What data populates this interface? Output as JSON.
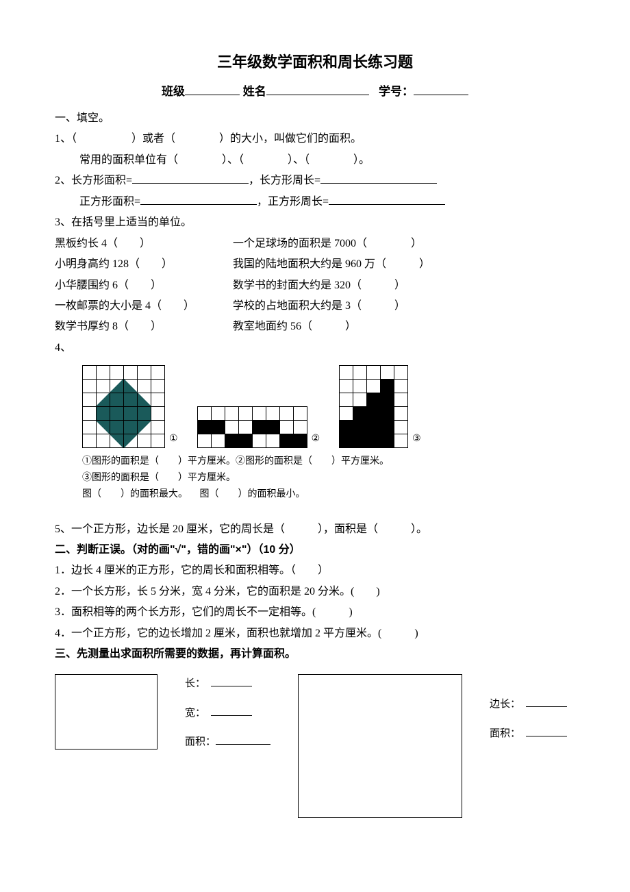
{
  "title": "三年级数学面积和周长练习题",
  "header": {
    "class_label": "班级",
    "name_label": "姓名",
    "id_label": "学号："
  },
  "s1": {
    "heading": "一、填空。",
    "q1a": "1、（　　　　　）或者（　　　　）的大小，叫做它们的面积。",
    "q1b": "常用的面积单位有（　　　　）、（　　　　）、（　　　　）。",
    "q2a_pre": "2、长方形面积=",
    "q2a_mid": "，长方形周长=",
    "q2b_pre": "正方形面积=",
    "q2b_mid": "，正方形周长=",
    "q3": "3、在括号里上适当的单位。",
    "units": [
      [
        "黑板约长 4（　　）",
        "一个足球场的面积是 7000（　　　　）"
      ],
      [
        "小明身高约 128（　　）",
        "我国的陆地面积大约是 960 万（　　　）"
      ],
      [
        "小华腰围约 6（　　）",
        "数学书的封面大约是 320（　　　）"
      ],
      [
        "一枚邮票的大小是 4（　　）",
        "学校的占地面积大约是 3（　　　）"
      ],
      [
        "数学书厚约 8（　　）",
        "教室地面约 56（　　　）"
      ]
    ],
    "q4": "4、",
    "fig": {
      "label1": "①",
      "label2": "②",
      "label3": "③",
      "line1": "①图形的面积是（　　）平方厘米。②图形的面积是（　　）平方厘米。",
      "line2": "③图形的面积是（　　）平方厘米。",
      "line3a": "图（　　）的面积最大。",
      "line3b": "图（　　）的面积最小。",
      "teal_color": "#1a5a5a",
      "grid1": {
        "cols": 6,
        "rows": 6
      },
      "grid2": {
        "cols": 8,
        "rows": 3
      },
      "grid3": {
        "cols": 5,
        "rows": 6
      }
    },
    "q5": "5、一个正方形，边长是 20 厘米，它的周长是（　　　），面积是（　　　）。"
  },
  "s2": {
    "heading": "二、判断正误。（对的画\"√\"，错的画\"×\"）（10 分）",
    "items": [
      "1．边长 4 厘米的正方形，它的周长和面积相等。（　　）",
      "2．一个长方形，长 5 分米，宽 4 分米，它的面积是 20 分米。(　　)",
      "3．面积相等的两个长方形，它们的周长不一定相等。(　　　)",
      "4．一个正方形，它的边长增加 2 厘米，面积也就增加 2 平方厘米。(　　　)"
    ]
  },
  "s3": {
    "heading": "三、先测量出求面积所需要的数据，再计算面积。",
    "labels1": {
      "l": "长：",
      "w": "宽：",
      "a": "面积："
    },
    "labels2": {
      "s": "边长：",
      "a": "面积："
    }
  }
}
